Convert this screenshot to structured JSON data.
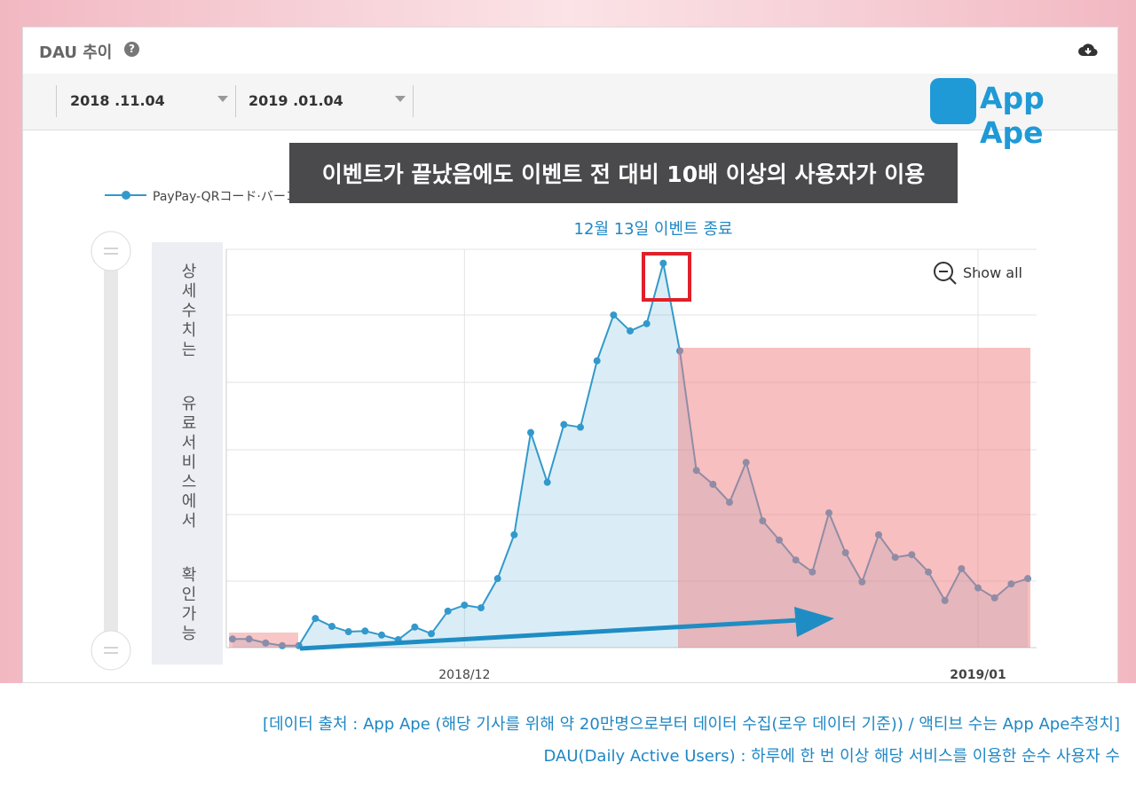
{
  "header": {
    "title": "DAU 추이",
    "start_date": "2018 .11.04",
    "end_date": "2019 .01.04",
    "brand": "App Ape"
  },
  "banner": "이벤트가 끝났음에도 이벤트 전 대비 10배 이상의 사용자가 이용",
  "side_note": "상세수치는 유료서비스에서 확인가능",
  "show_all": "Show all",
  "chart_data": {
    "type": "line",
    "annotation": "12월 13일 이벤트 종료",
    "categories": [
      null,
      null,
      null,
      null,
      null,
      null,
      null,
      null,
      null,
      null,
      null,
      null,
      null,
      null,
      "2018/12",
      null,
      null,
      null,
      null,
      null,
      null,
      null,
      null,
      null,
      null,
      null,
      null,
      null,
      null,
      null,
      null,
      null,
      null,
      null,
      null,
      null,
      null,
      null,
      null,
      null,
      null,
      null,
      null,
      null,
      null,
      "2019/01",
      null,
      null,
      null
    ],
    "series": [
      {
        "name": "PayPay-QRコード·バーコードで支払うスマホアプリ",
        "color": "#3399cc",
        "values": [
          0.13,
          0.13,
          0.07,
          0.03,
          0.03,
          0.44,
          0.32,
          0.24,
          0.25,
          0.19,
          0.12,
          0.31,
          0.21,
          0.55,
          0.64,
          0.6,
          1.04,
          1.7,
          3.24,
          2.49,
          3.36,
          3.32,
          4.32,
          5.01,
          4.77,
          4.88,
          5.79,
          4.47,
          2.67,
          2.46,
          2.19,
          2.79,
          1.91,
          1.62,
          1.32,
          1.14,
          2.03,
          1.43,
          0.99,
          1.7,
          1.36,
          1.4,
          1.14,
          0.71,
          1.19,
          0.9,
          0.75,
          0.96,
          1.04
        ]
      }
    ],
    "ylim": [
      0,
      6
    ],
    "legend": "top-left"
  },
  "footer": [
    "[데이터 출처 : App Ape (해당 기사를 위해 약 20만명으로부터 데이터 수집(로우 데이터 기준)) / 액티브 수는 App Ape추정치]",
    "DAU(Daily Active Users) : 하루에 한 번 이상 해당 서비스를 이용한 순수 사용자 수"
  ]
}
